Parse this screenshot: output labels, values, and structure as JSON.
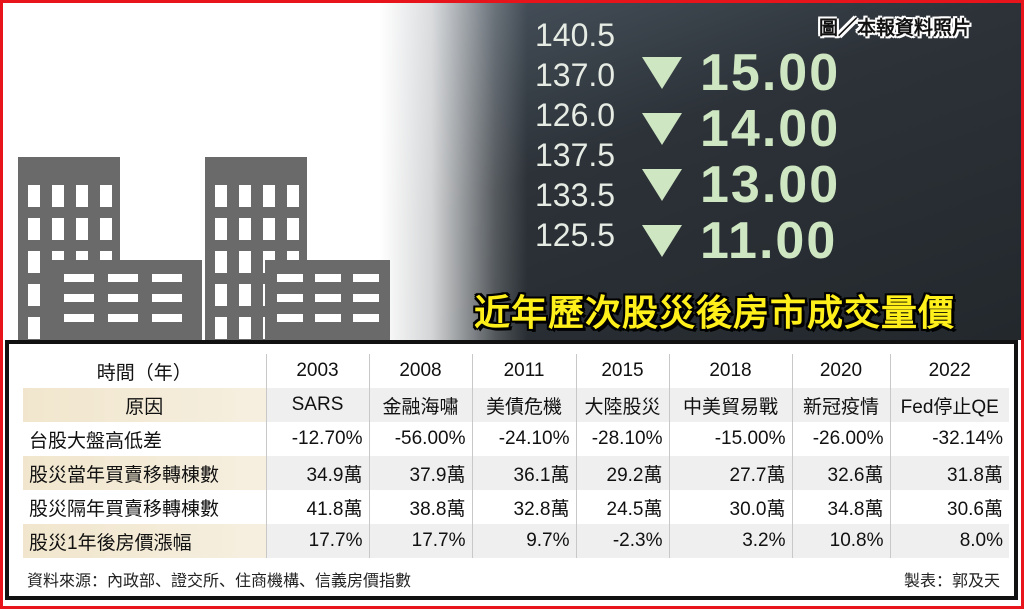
{
  "photo": {
    "credit": "圖／本報資料照片",
    "big_numbers": [
      "15.00",
      "14.00",
      "13.00",
      "11.00"
    ],
    "small_numbers": [
      "140.5",
      "137.0",
      "126.0",
      "137.5",
      "133.5",
      "125.5"
    ]
  },
  "headline": "近年歷次股災後房市成交量價",
  "table": {
    "header": [
      "時間（年）",
      "2003",
      "2008",
      "2011",
      "2015",
      "2018",
      "2020",
      "2022"
    ],
    "rows": [
      {
        "label": "原因",
        "values": [
          "SARS",
          "金融海嘯",
          "美債危機",
          "大陸股災",
          "中美貿易戰",
          "新冠疫情",
          "Fed停止QE"
        ]
      },
      {
        "label": "台股大盤高低差",
        "values": [
          "-12.70%",
          "-56.00%",
          "-24.10%",
          "-28.10%",
          "-15.00%",
          "-26.00%",
          "-32.14%"
        ]
      },
      {
        "label": "股災當年買賣移轉棟數",
        "values": [
          "34.9萬",
          "37.9萬",
          "36.1萬",
          "29.2萬",
          "27.7萬",
          "32.6萬",
          "31.8萬"
        ]
      },
      {
        "label": "股災隔年買賣移轉棟數",
        "values": [
          "41.8萬",
          "38.8萬",
          "32.8萬",
          "24.5萬",
          "30.0萬",
          "34.8萬",
          "30.6萬"
        ]
      },
      {
        "label": "股災1年後房價漲幅",
        "values": [
          "17.7%",
          "17.7%",
          "9.7%",
          "-2.3%",
          "3.2%",
          "10.8%",
          "8.0%"
        ]
      }
    ]
  },
  "footer": {
    "source": "資料來源：內政部、證交所、住商機構、信義房價指數",
    "author": "製表：郭及天"
  },
  "colors": {
    "border": "#e8141b",
    "headline": "#ffef1a",
    "building": "#6a6a6a"
  }
}
